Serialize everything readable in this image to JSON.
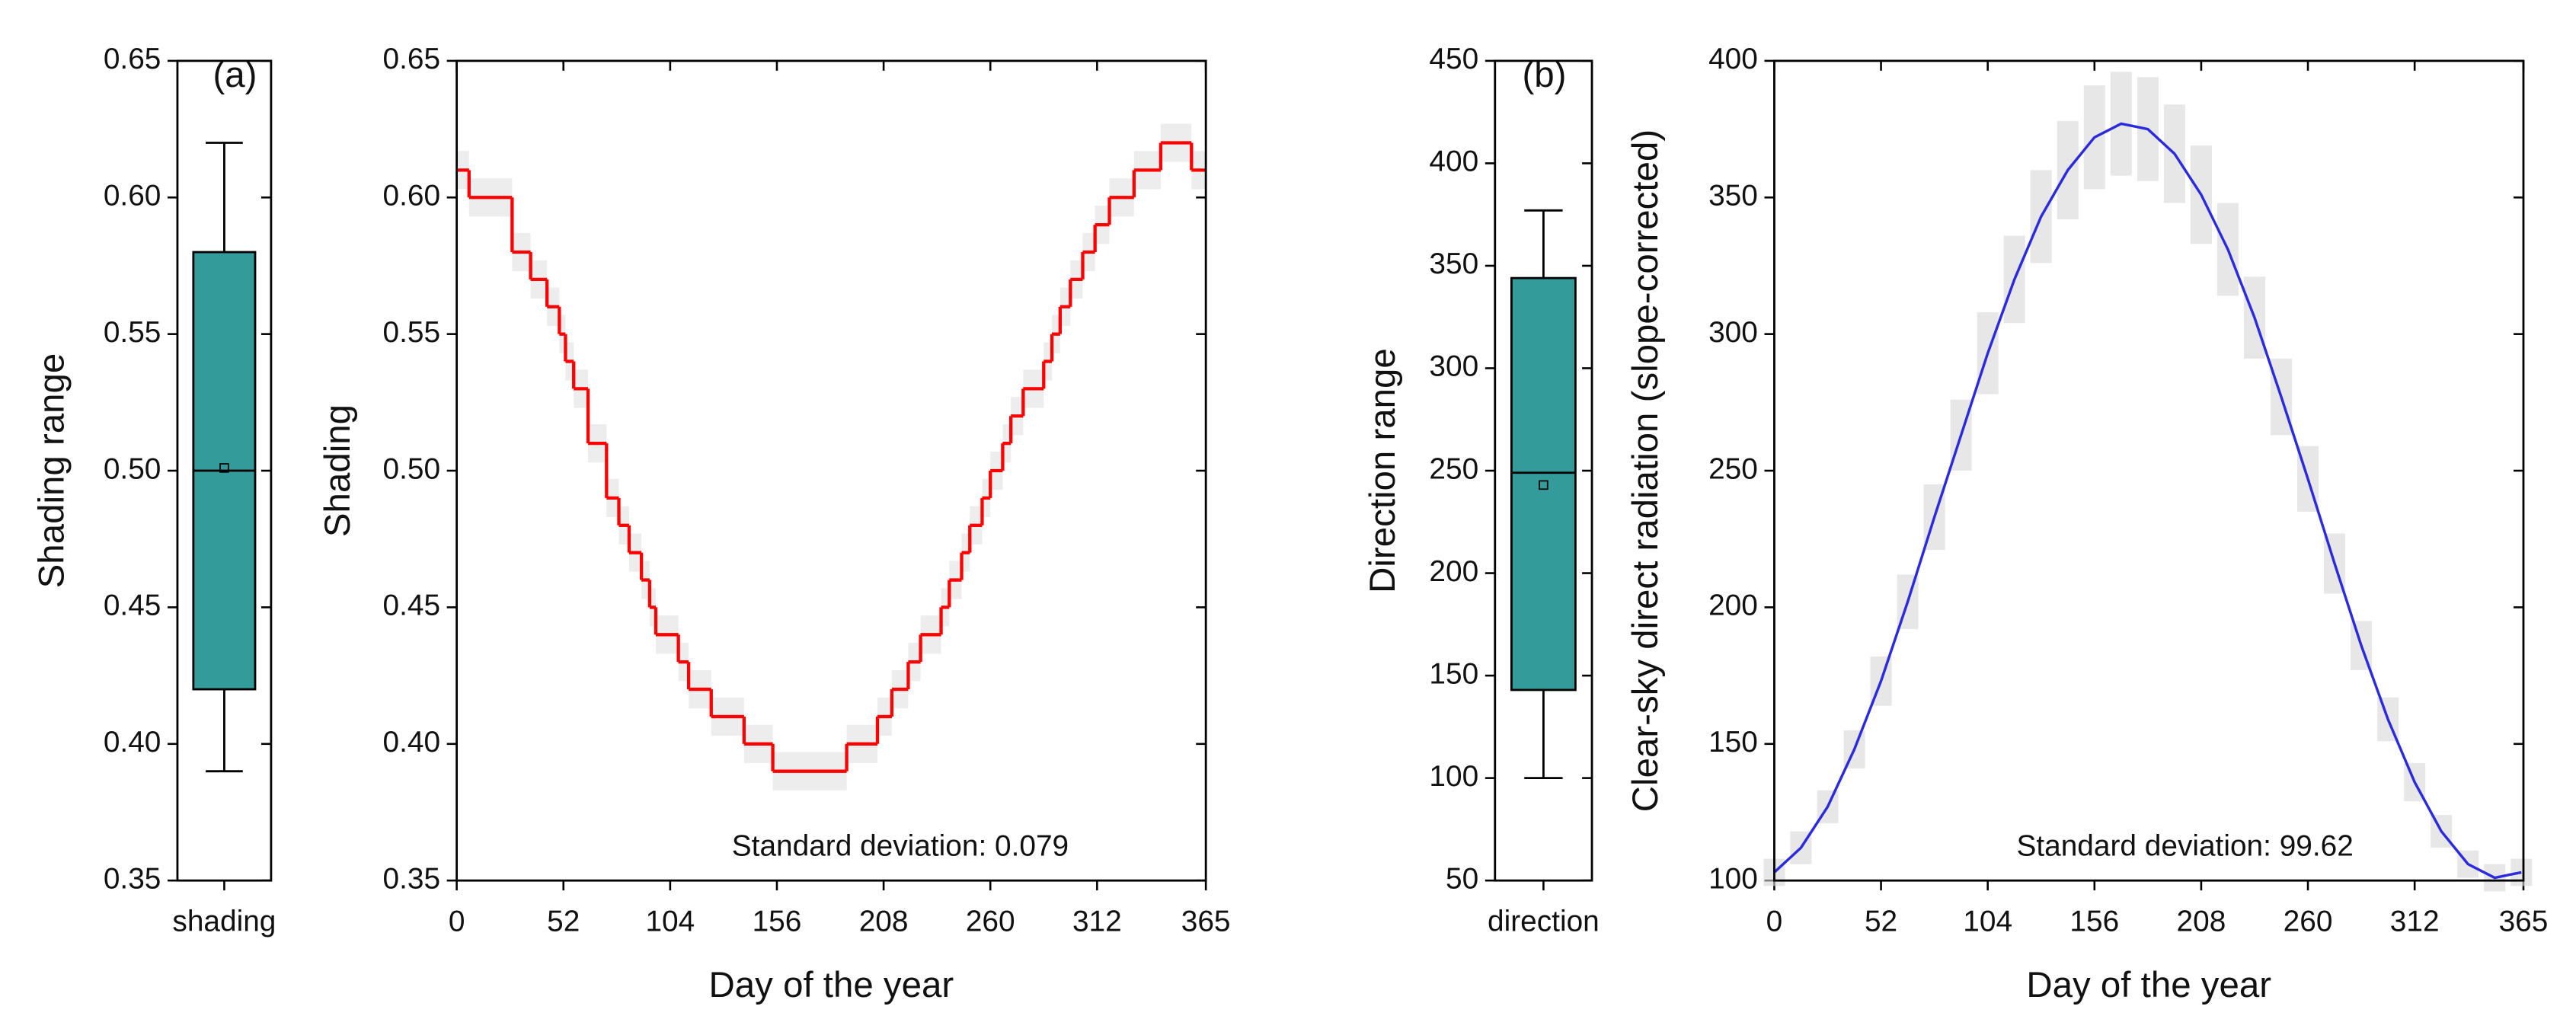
{
  "chart_data": [
    {
      "type": "box",
      "annotation": "(a)",
      "ylabel": "Shading range",
      "categories": [
        "shading"
      ],
      "min": 0.39,
      "q1": 0.42,
      "median": 0.5,
      "q3": 0.58,
      "max": 0.62,
      "mean": 0.501,
      "color": "#339b9a",
      "ylim": [
        0.35,
        0.65
      ],
      "yticks": [
        0.35,
        {
          "value": 0.4,
          "label": "0.40"
        },
        0.45,
        {
          "value": 0.5,
          "label": "0.50"
        },
        0.55,
        {
          "value": 0.6,
          "label": "0.60"
        },
        0.65
      ]
    },
    {
      "type": "step",
      "xlabel": "Day of the year",
      "ylabel": "Shading",
      "annotation": "Standard deviation: 0.079",
      "color": "#ff0000",
      "band_color": "#e6e6e6",
      "error": 0.007,
      "x": [
        0,
        6,
        27,
        36,
        44,
        50,
        53,
        57,
        64,
        73,
        79,
        84,
        90,
        94,
        97,
        108,
        113,
        124,
        140,
        154,
        190,
        205,
        212,
        220,
        226,
        236,
        240,
        246,
        250,
        256,
        260,
        266,
        270,
        276,
        286,
        290,
        294,
        299,
        305,
        311,
        318,
        330,
        343,
        358
      ],
      "values": [
        0.61,
        0.6,
        0.58,
        0.57,
        0.56,
        0.55,
        0.54,
        0.53,
        0.51,
        0.49,
        0.48,
        0.47,
        0.46,
        0.45,
        0.44,
        0.43,
        0.42,
        0.41,
        0.4,
        0.39,
        0.4,
        0.41,
        0.42,
        0.43,
        0.44,
        0.45,
        0.46,
        0.47,
        0.48,
        0.49,
        0.5,
        0.51,
        0.52,
        0.53,
        0.54,
        0.55,
        0.56,
        0.57,
        0.58,
        0.59,
        0.6,
        0.61,
        0.62,
        0.61
      ],
      "xlim": [
        0,
        365
      ],
      "xticks": [
        0,
        52,
        104,
        156,
        208,
        260,
        312,
        365
      ],
      "ylim": [
        0.35,
        0.65
      ],
      "yticks": [
        0.35,
        {
          "value": 0.4,
          "label": "0.40"
        },
        0.45,
        {
          "value": 0.5,
          "label": "0.50"
        },
        0.55,
        {
          "value": 0.6,
          "label": "0.60"
        },
        0.65
      ]
    },
    {
      "type": "box",
      "annotation": "(b)",
      "ylabel": "Direction range",
      "categories": [
        "direction"
      ],
      "min": 100,
      "q1": 143,
      "median": 249,
      "q3": 344,
      "max": 377,
      "mean": 243,
      "color": "#339b9a",
      "ylim": [
        50,
        450
      ],
      "yticks": [
        50,
        100,
        150,
        200,
        250,
        300,
        350,
        400,
        450
      ]
    },
    {
      "type": "line",
      "xlabel": "Day of the year",
      "ylabel": "Clear-sky direct radiation (slope-corrected)",
      "annotation": "Standard deviation: 99.62",
      "color": "#2b2bdd",
      "band_color": "#d8d8d8",
      "x": [
        0,
        13,
        26,
        39,
        52,
        65,
        78,
        91,
        104,
        117,
        130,
        143,
        156,
        169,
        182,
        195,
        208,
        221,
        234,
        247,
        260,
        273,
        286,
        299,
        312,
        325,
        338,
        351,
        364
      ],
      "values": [
        103,
        112,
        127,
        148,
        173,
        202,
        233,
        263,
        293,
        320,
        343,
        360,
        372,
        377,
        375,
        366,
        351,
        331,
        306,
        277,
        247,
        216,
        186,
        159,
        136,
        118,
        106,
        101,
        103
      ],
      "errors": [
        5,
        6,
        6,
        7,
        9,
        10,
        12,
        13,
        15,
        16,
        17,
        18,
        19,
        19,
        19,
        18,
        18,
        17,
        15,
        14,
        12,
        11,
        9,
        8,
        7,
        6,
        5,
        5,
        5
      ],
      "xlim": [
        0,
        365
      ],
      "xticks": [
        0,
        52,
        104,
        156,
        208,
        260,
        312,
        365
      ],
      "ylim": [
        100,
        400
      ],
      "yticks": [
        100,
        150,
        200,
        250,
        300,
        350,
        400
      ]
    }
  ]
}
